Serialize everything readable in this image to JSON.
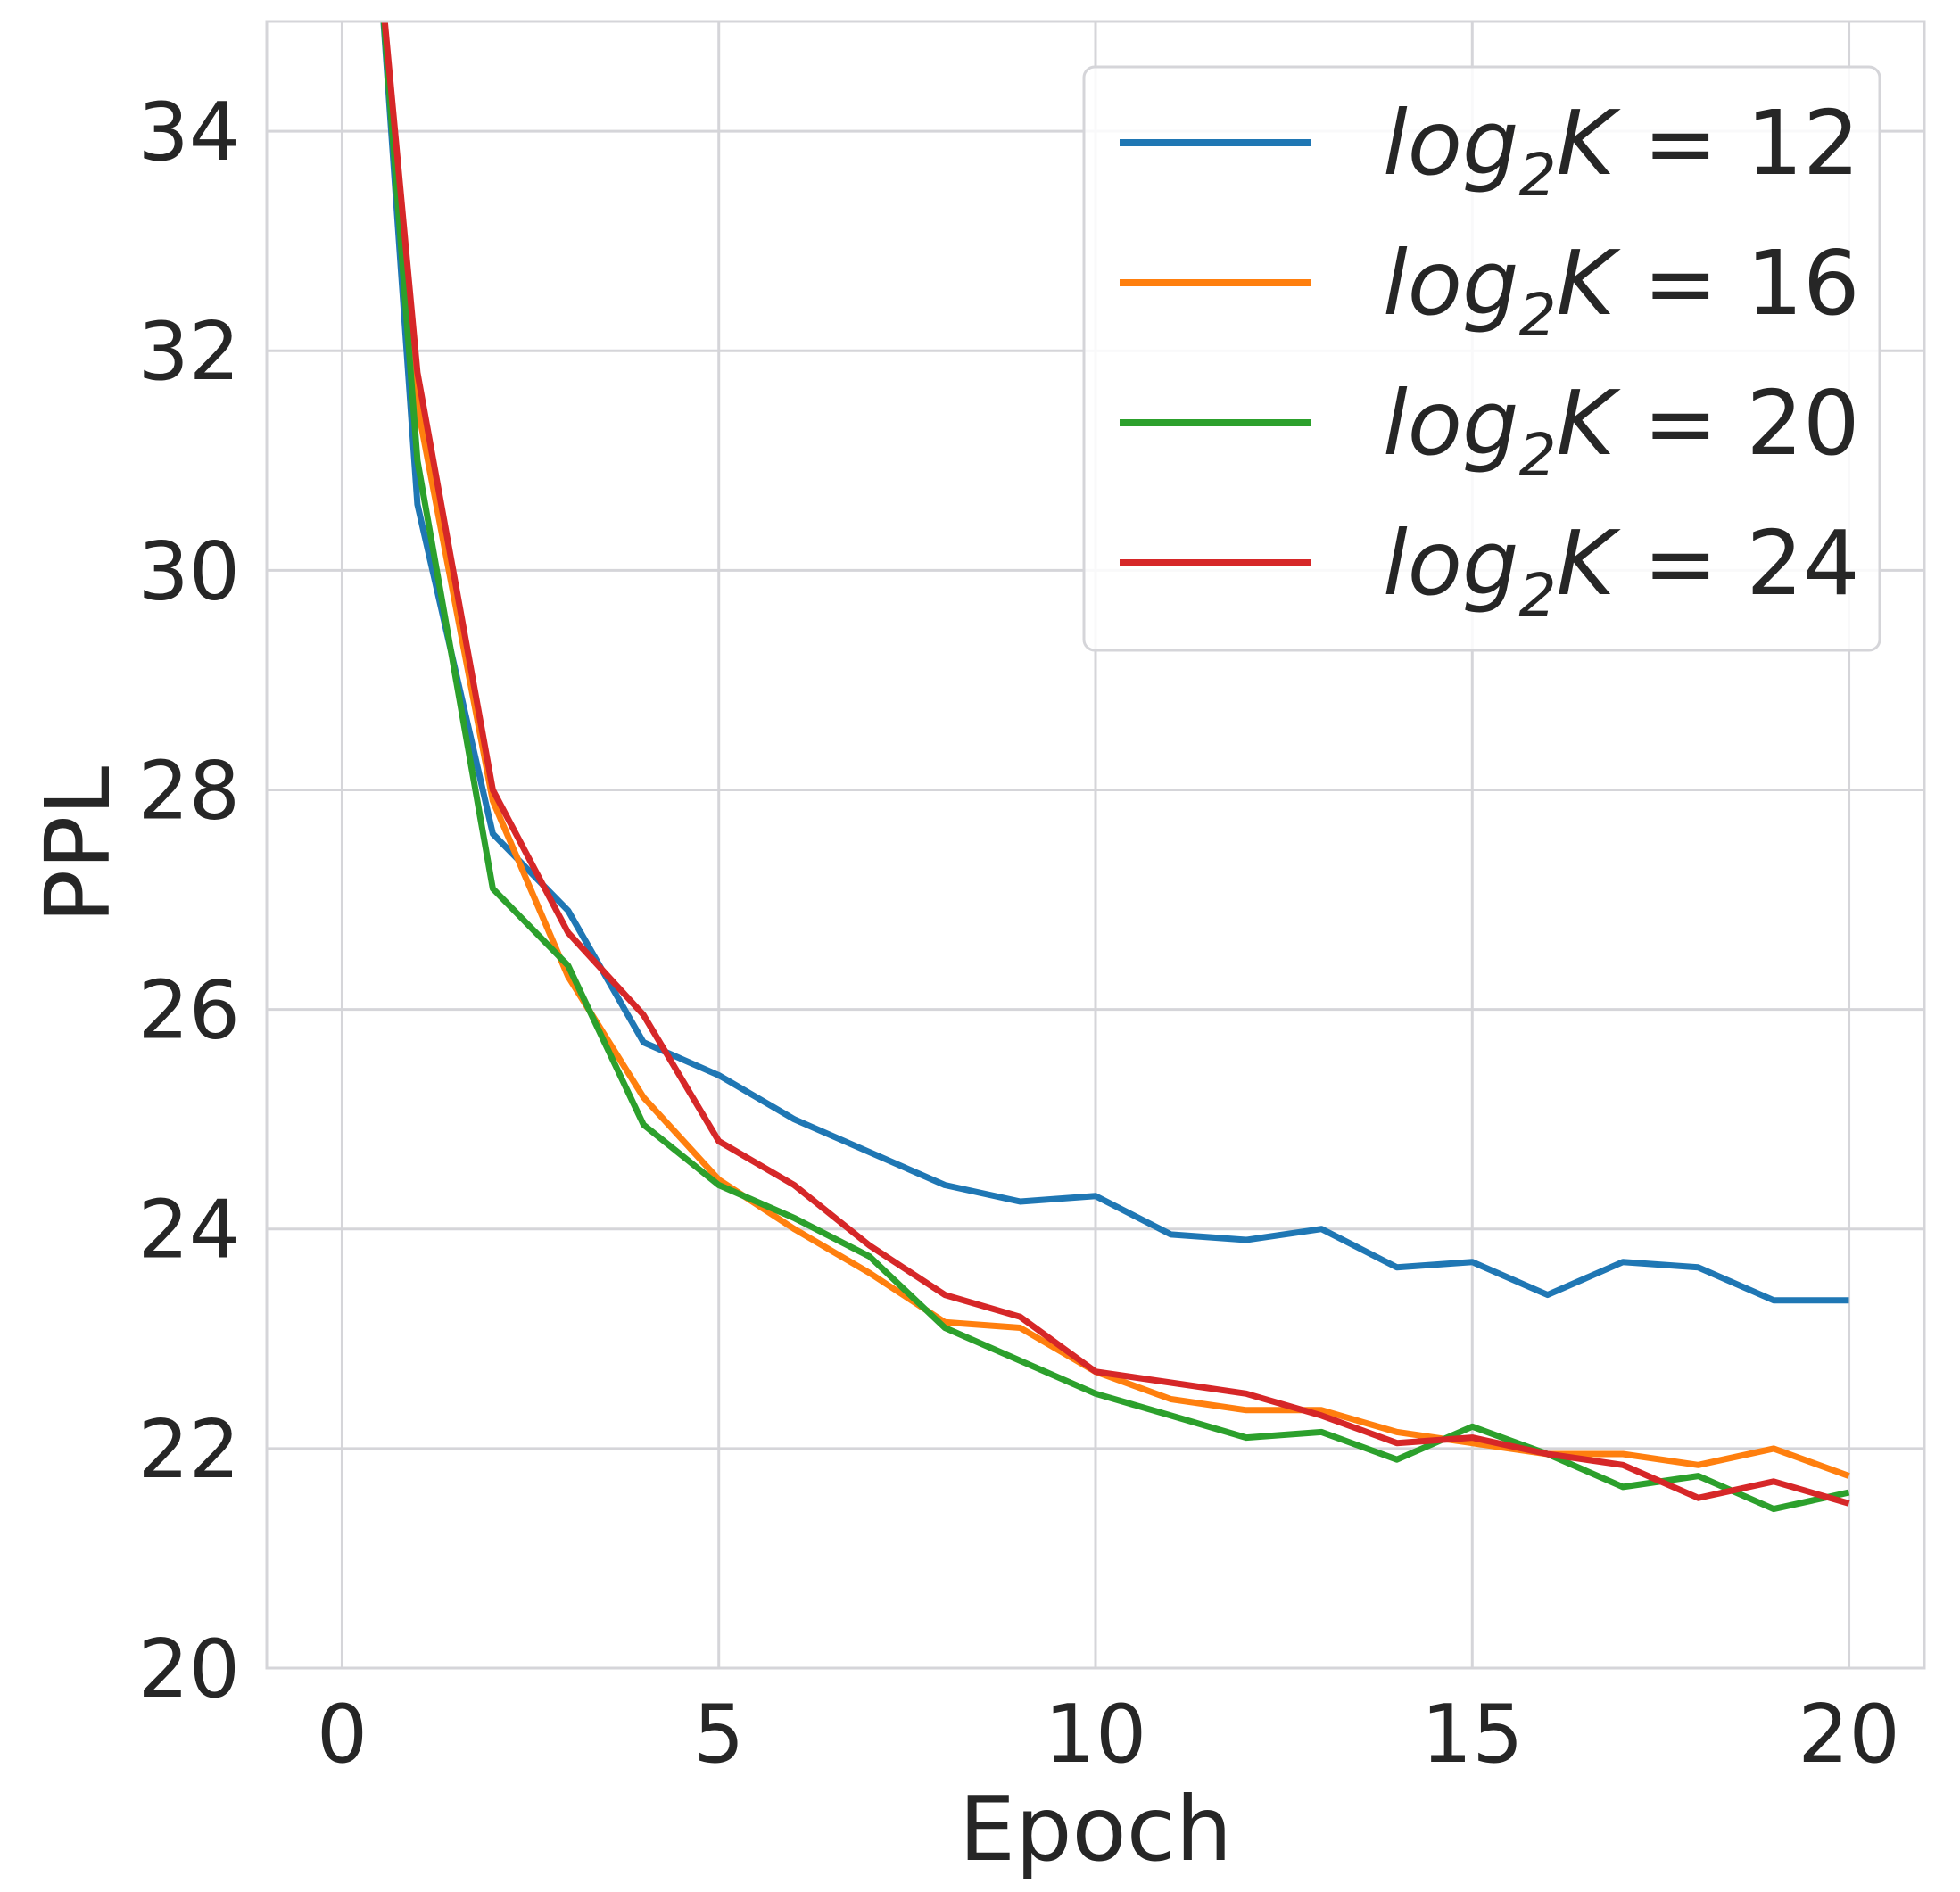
{
  "chart_data": {
    "type": "line",
    "title": "",
    "xlabel": "Epoch",
    "ylabel": "PPL",
    "xlim": [
      -1,
      21
    ],
    "ylim": [
      20,
      35
    ],
    "xticks": [
      0,
      5,
      10,
      15,
      20
    ],
    "yticks": [
      20,
      22,
      24,
      26,
      28,
      30,
      32,
      34
    ],
    "grid": true,
    "legend_position": "top-right",
    "x": [
      0.5,
      1,
      2,
      3,
      4,
      5,
      6,
      7,
      8,
      9,
      10,
      11,
      12,
      13,
      14,
      15,
      16,
      17,
      18,
      19,
      20
    ],
    "series": [
      {
        "name": "log2K = 12",
        "legend_label": {
          "italic": "log",
          "sub": "2",
          "italic2": "K",
          "rest": " = 12"
        },
        "color": "#1f77b4",
        "values": [
          35.0,
          30.6,
          27.6,
          26.9,
          25.7,
          25.4,
          25.0,
          24.7,
          24.4,
          24.25,
          24.3,
          23.95,
          23.9,
          24.0,
          23.65,
          23.7,
          23.4,
          23.7,
          23.65,
          23.35,
          23.35
        ]
      },
      {
        "name": "log2K = 16",
        "legend_label": {
          "italic": "log",
          "sub": "2",
          "italic2": "K",
          "rest": " = 16"
        },
        "color": "#ff7f0e",
        "values": [
          35.0,
          31.5,
          27.9,
          26.3,
          25.2,
          24.45,
          24.0,
          23.6,
          23.15,
          23.1,
          22.7,
          22.45,
          22.35,
          22.35,
          22.15,
          22.05,
          21.95,
          21.95,
          21.85,
          22.0,
          21.75
        ]
      },
      {
        "name": "log2K = 20",
        "legend_label": {
          "italic": "log",
          "sub": "2",
          "italic2": "K",
          "rest": " = 20"
        },
        "color": "#2ca02c",
        "values": [
          35.0,
          31.0,
          27.1,
          26.4,
          24.95,
          24.4,
          24.1,
          23.75,
          23.1,
          22.8,
          22.5,
          22.3,
          22.1,
          22.15,
          21.9,
          22.2,
          21.95,
          21.65,
          21.75,
          21.45,
          21.6
        ]
      },
      {
        "name": "log2K = 24",
        "legend_label": {
          "italic": "log",
          "sub": "2",
          "italic2": "K",
          "rest": " = 24"
        },
        "color": "#d62728",
        "values": [
          35.0,
          31.8,
          28.0,
          26.7,
          25.95,
          24.8,
          24.4,
          23.85,
          23.4,
          23.2,
          22.7,
          22.6,
          22.5,
          22.3,
          22.05,
          22.1,
          21.95,
          21.85,
          21.55,
          21.7,
          21.5
        ]
      }
    ]
  }
}
